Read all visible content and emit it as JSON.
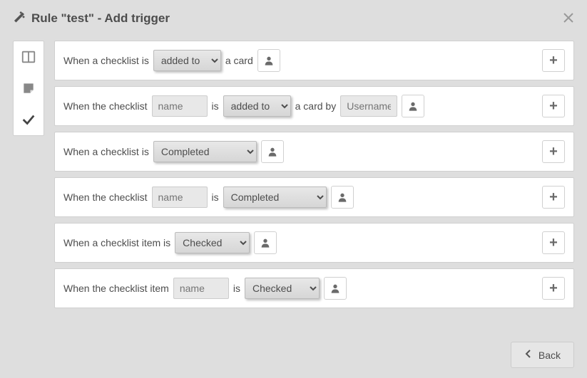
{
  "dialog": {
    "title": "Rule \"test\" - Add trigger"
  },
  "sidebar": {
    "tabs": [
      {
        "name": "columns",
        "active": false
      },
      {
        "name": "sticky-note",
        "active": false
      },
      {
        "name": "check",
        "active": true
      }
    ]
  },
  "rows": [
    {
      "parts": [
        {
          "t": "text",
          "v": "When a checklist is"
        },
        {
          "t": "select",
          "v": "added to"
        },
        {
          "t": "text",
          "v": "a card"
        },
        {
          "t": "user"
        }
      ]
    },
    {
      "parts": [
        {
          "t": "text",
          "v": "When the checklist"
        },
        {
          "t": "input",
          "placeholder": "name"
        },
        {
          "t": "text",
          "v": "is"
        },
        {
          "t": "select",
          "v": "added to"
        },
        {
          "t": "text",
          "v": "a card by"
        },
        {
          "t": "input",
          "placeholder": "Username",
          "cls": "username"
        },
        {
          "t": "user"
        }
      ]
    },
    {
      "parts": [
        {
          "t": "text",
          "v": "When a checklist is"
        },
        {
          "t": "select",
          "v": "Completed"
        },
        {
          "t": "user"
        }
      ]
    },
    {
      "parts": [
        {
          "t": "text",
          "v": "When the checklist"
        },
        {
          "t": "input",
          "placeholder": "name"
        },
        {
          "t": "text",
          "v": "is"
        },
        {
          "t": "select",
          "v": "Completed"
        },
        {
          "t": "user"
        }
      ]
    },
    {
      "parts": [
        {
          "t": "text",
          "v": "When a checklist item is"
        },
        {
          "t": "select",
          "v": "Checked"
        },
        {
          "t": "user"
        }
      ]
    },
    {
      "parts": [
        {
          "t": "text",
          "v": "When the checklist item"
        },
        {
          "t": "input",
          "placeholder": "name"
        },
        {
          "t": "text",
          "v": "is"
        },
        {
          "t": "select",
          "v": "Checked"
        },
        {
          "t": "user"
        }
      ]
    }
  ],
  "footer": {
    "back_label": "Back"
  },
  "select_widths": {
    "added to": 95,
    "Completed": 145,
    "Checked": 105
  }
}
